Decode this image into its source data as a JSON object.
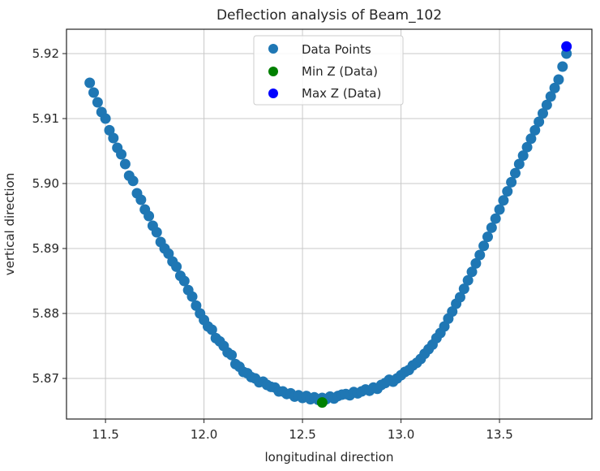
{
  "chart_data": {
    "type": "scatter",
    "title": "Deflection analysis of Beam_102",
    "xlabel": "longitudinal direction",
    "ylabel": "vertical direction",
    "xlim": [
      11.302,
      13.969
    ],
    "ylim": [
      5.86375,
      5.92375
    ],
    "xticks": [
      11.5,
      12.0,
      12.5,
      13.0,
      13.5
    ],
    "xtick_labels": [
      "11.5",
      "12.0",
      "12.5",
      "13.0",
      "13.5"
    ],
    "yticks": [
      5.87,
      5.88,
      5.89,
      5.9,
      5.91,
      5.92
    ],
    "ytick_labels": [
      "5.87",
      "5.88",
      "5.89",
      "5.90",
      "5.91",
      "5.92"
    ],
    "grid": true,
    "legend_placement": "upper-center",
    "legend": [
      "Data Points",
      "Min Z (Data)",
      "Max Z (Data)"
    ],
    "colors": {
      "data": "#1f77b4",
      "min": "#008000",
      "max": "#0000ff"
    },
    "series": [
      {
        "name": "Data Points",
        "points": [
          [
            11.42,
            5.9155
          ],
          [
            11.44,
            5.914
          ],
          [
            11.46,
            5.9125
          ],
          [
            11.48,
            5.911
          ],
          [
            11.5,
            5.91
          ],
          [
            11.52,
            5.9082
          ],
          [
            11.54,
            5.907
          ],
          [
            11.56,
            5.9055
          ],
          [
            11.58,
            5.9045
          ],
          [
            11.6,
            5.903
          ],
          [
            11.62,
            5.9012
          ],
          [
            11.64,
            5.9004
          ],
          [
            11.66,
            5.8985
          ],
          [
            11.68,
            5.8975
          ],
          [
            11.7,
            5.896
          ],
          [
            11.72,
            5.895
          ],
          [
            11.74,
            5.8935
          ],
          [
            11.76,
            5.8925
          ],
          [
            11.78,
            5.891
          ],
          [
            11.8,
            5.89
          ],
          [
            11.82,
            5.8892
          ],
          [
            11.84,
            5.888
          ],
          [
            11.86,
            5.8872
          ],
          [
            11.88,
            5.8858
          ],
          [
            11.9,
            5.885
          ],
          [
            11.92,
            5.8836
          ],
          [
            11.94,
            5.8826
          ],
          [
            11.96,
            5.8812
          ],
          [
            11.98,
            5.88
          ],
          [
            12.0,
            5.879
          ],
          [
            12.02,
            5.878
          ],
          [
            12.04,
            5.8775
          ],
          [
            12.06,
            5.8762
          ],
          [
            12.08,
            5.8757
          ],
          [
            12.1,
            5.875
          ],
          [
            12.12,
            5.874
          ],
          [
            12.14,
            5.8736
          ],
          [
            12.16,
            5.8722
          ],
          [
            12.18,
            5.8718
          ],
          [
            12.2,
            5.871
          ],
          [
            12.22,
            5.8708
          ],
          [
            12.24,
            5.8702
          ],
          [
            12.26,
            5.87
          ],
          [
            12.28,
            5.8694
          ],
          [
            12.3,
            5.8695
          ],
          [
            12.32,
            5.869
          ],
          [
            12.34,
            5.8687
          ],
          [
            12.36,
            5.8686
          ],
          [
            12.38,
            5.868
          ],
          [
            12.4,
            5.868
          ],
          [
            12.42,
            5.8676
          ],
          [
            12.44,
            5.8677
          ],
          [
            12.46,
            5.8672
          ],
          [
            12.48,
            5.8674
          ],
          [
            12.5,
            5.867
          ],
          [
            12.52,
            5.8673
          ],
          [
            12.54,
            5.8668
          ],
          [
            12.56,
            5.8671
          ],
          [
            12.58,
            5.8667
          ],
          [
            12.6,
            5.867
          ],
          [
            12.62,
            5.8668
          ],
          [
            12.64,
            5.8672
          ],
          [
            12.66,
            5.8669
          ],
          [
            12.68,
            5.8673
          ],
          [
            12.7,
            5.8675
          ],
          [
            12.72,
            5.8676
          ],
          [
            12.74,
            5.8674
          ],
          [
            12.76,
            5.8679
          ],
          [
            12.78,
            5.8677
          ],
          [
            12.8,
            5.868
          ],
          [
            12.82,
            5.8683
          ],
          [
            12.84,
            5.8681
          ],
          [
            12.86,
            5.8686
          ],
          [
            12.88,
            5.8684
          ],
          [
            12.9,
            5.869
          ],
          [
            12.92,
            5.8693
          ],
          [
            12.94,
            5.8698
          ],
          [
            12.96,
            5.8695
          ],
          [
            12.98,
            5.87
          ],
          [
            13.0,
            5.8705
          ],
          [
            13.02,
            5.871
          ],
          [
            13.04,
            5.8713
          ],
          [
            13.06,
            5.872
          ],
          [
            13.08,
            5.8724
          ],
          [
            13.1,
            5.873
          ],
          [
            13.12,
            5.8738
          ],
          [
            13.14,
            5.8745
          ],
          [
            13.16,
            5.8752
          ],
          [
            13.18,
            5.8762
          ],
          [
            13.2,
            5.877
          ],
          [
            13.22,
            5.878
          ],
          [
            13.24,
            5.8792
          ],
          [
            13.26,
            5.8803
          ],
          [
            13.28,
            5.8815
          ],
          [
            13.3,
            5.8825
          ],
          [
            13.32,
            5.8838
          ],
          [
            13.34,
            5.8851
          ],
          [
            13.36,
            5.8864
          ],
          [
            13.38,
            5.8877
          ],
          [
            13.4,
            5.889
          ],
          [
            13.42,
            5.8904
          ],
          [
            13.44,
            5.8918
          ],
          [
            13.46,
            5.8932
          ],
          [
            13.48,
            5.8946
          ],
          [
            13.5,
            5.896
          ],
          [
            13.52,
            5.8974
          ],
          [
            13.54,
            5.8988
          ],
          [
            13.56,
            5.9002
          ],
          [
            13.58,
            5.9016
          ],
          [
            13.6,
            5.903
          ],
          [
            13.62,
            5.9043
          ],
          [
            13.64,
            5.9056
          ],
          [
            13.66,
            5.9069
          ],
          [
            13.68,
            5.9082
          ],
          [
            13.7,
            5.9095
          ],
          [
            13.72,
            5.9108
          ],
          [
            13.74,
            5.9121
          ],
          [
            13.76,
            5.9134
          ],
          [
            13.78,
            5.9147
          ],
          [
            13.8,
            5.916
          ],
          [
            13.82,
            5.918
          ],
          [
            13.84,
            5.92
          ]
        ]
      },
      {
        "name": "Min Z (Data)",
        "points": [
          [
            12.6,
            5.8663
          ]
        ]
      },
      {
        "name": "Max Z (Data)",
        "points": [
          [
            13.84,
            5.9211
          ]
        ]
      }
    ]
  }
}
